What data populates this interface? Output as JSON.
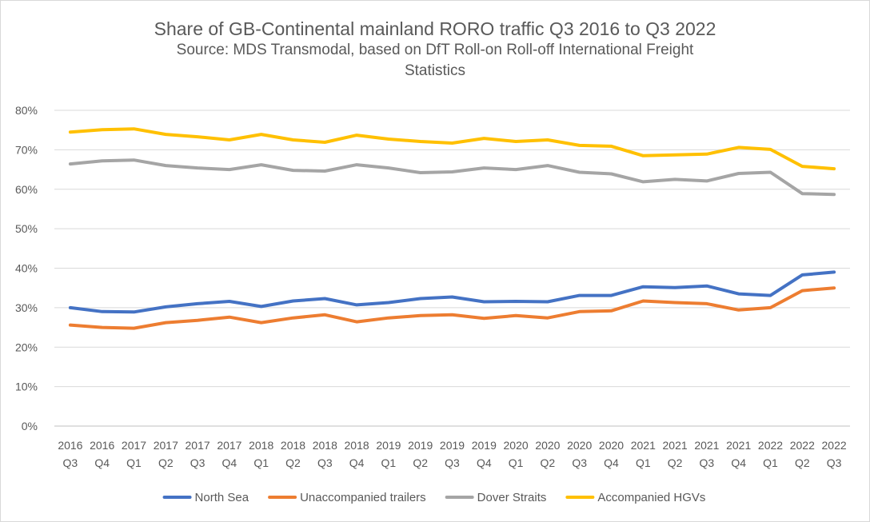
{
  "chart_data": {
    "type": "line",
    "title": "Share of GB-Continental mainland RORO traffic Q3 2016 to Q3 2022",
    "subtitle_lines": [
      "Source:  MDS Transmodal, based on DfT Roll-on Roll-off International Freight",
      "Statistics"
    ],
    "xlabel": "",
    "ylabel": "",
    "y_ticks": [
      "0%",
      "10%",
      "20%",
      "30%",
      "40%",
      "50%",
      "60%",
      "70%",
      "80%"
    ],
    "ylim": [
      0,
      80
    ],
    "grid": true,
    "legend_position": "bottom",
    "categories": [
      {
        "year": "2016",
        "quarter": "Q3"
      },
      {
        "year": "2016",
        "quarter": "Q4"
      },
      {
        "year": "2017",
        "quarter": "Q1"
      },
      {
        "year": "2017",
        "quarter": "Q2"
      },
      {
        "year": "2017",
        "quarter": "Q3"
      },
      {
        "year": "2017",
        "quarter": "Q4"
      },
      {
        "year": "2018",
        "quarter": "Q1"
      },
      {
        "year": "2018",
        "quarter": "Q2"
      },
      {
        "year": "2018",
        "quarter": "Q3"
      },
      {
        "year": "2018",
        "quarter": "Q4"
      },
      {
        "year": "2019",
        "quarter": "Q1"
      },
      {
        "year": "2019",
        "quarter": "Q2"
      },
      {
        "year": "2019",
        "quarter": "Q3"
      },
      {
        "year": "2019",
        "quarter": "Q4"
      },
      {
        "year": "2020",
        "quarter": "Q1"
      },
      {
        "year": "2020",
        "quarter": "Q2"
      },
      {
        "year": "2020",
        "quarter": "Q3"
      },
      {
        "year": "2020",
        "quarter": "Q4"
      },
      {
        "year": "2021",
        "quarter": "Q1"
      },
      {
        "year": "2021",
        "quarter": "Q2"
      },
      {
        "year": "2021",
        "quarter": "Q3"
      },
      {
        "year": "2021",
        "quarter": "Q4"
      },
      {
        "year": "2022",
        "quarter": "Q1"
      },
      {
        "year": "2022",
        "quarter": "Q2"
      },
      {
        "year": "2022",
        "quarter": "Q3"
      }
    ],
    "series": [
      {
        "name": "North Sea",
        "color": "#4472c4",
        "values": [
          30.0,
          29.0,
          28.9,
          30.2,
          31.0,
          31.6,
          30.3,
          31.7,
          32.3,
          30.7,
          31.3,
          32.3,
          32.7,
          31.5,
          31.6,
          31.5,
          33.1,
          33.1,
          35.3,
          35.1,
          35.5,
          33.5,
          33.1,
          38.3,
          39.0
        ]
      },
      {
        "name": "Unaccompanied trailers",
        "color": "#ed7d31",
        "values": [
          25.6,
          25.0,
          24.8,
          26.2,
          26.8,
          27.6,
          26.2,
          27.4,
          28.2,
          26.4,
          27.4,
          28.0,
          28.2,
          27.3,
          28.0,
          27.4,
          29.0,
          29.2,
          31.7,
          31.3,
          31.0,
          29.4,
          30.0,
          34.3,
          35.0
        ]
      },
      {
        "name": "Dover Straits",
        "color": "#a5a5a5",
        "values": [
          66.4,
          67.2,
          67.4,
          66.0,
          65.4,
          65.0,
          66.2,
          64.8,
          64.6,
          66.2,
          65.4,
          64.2,
          64.4,
          65.4,
          65.0,
          66.0,
          64.3,
          63.9,
          61.9,
          62.5,
          62.1,
          64.0,
          64.3,
          58.9,
          58.7
        ]
      },
      {
        "name": "Accompanied HGVs",
        "color": "#ffc000",
        "values": [
          74.5,
          75.1,
          75.3,
          73.9,
          73.3,
          72.5,
          73.9,
          72.5,
          71.9,
          73.7,
          72.7,
          72.1,
          71.7,
          72.9,
          72.1,
          72.5,
          71.1,
          70.9,
          68.5,
          68.7,
          68.9,
          70.6,
          70.1,
          65.8,
          65.2
        ]
      }
    ]
  }
}
